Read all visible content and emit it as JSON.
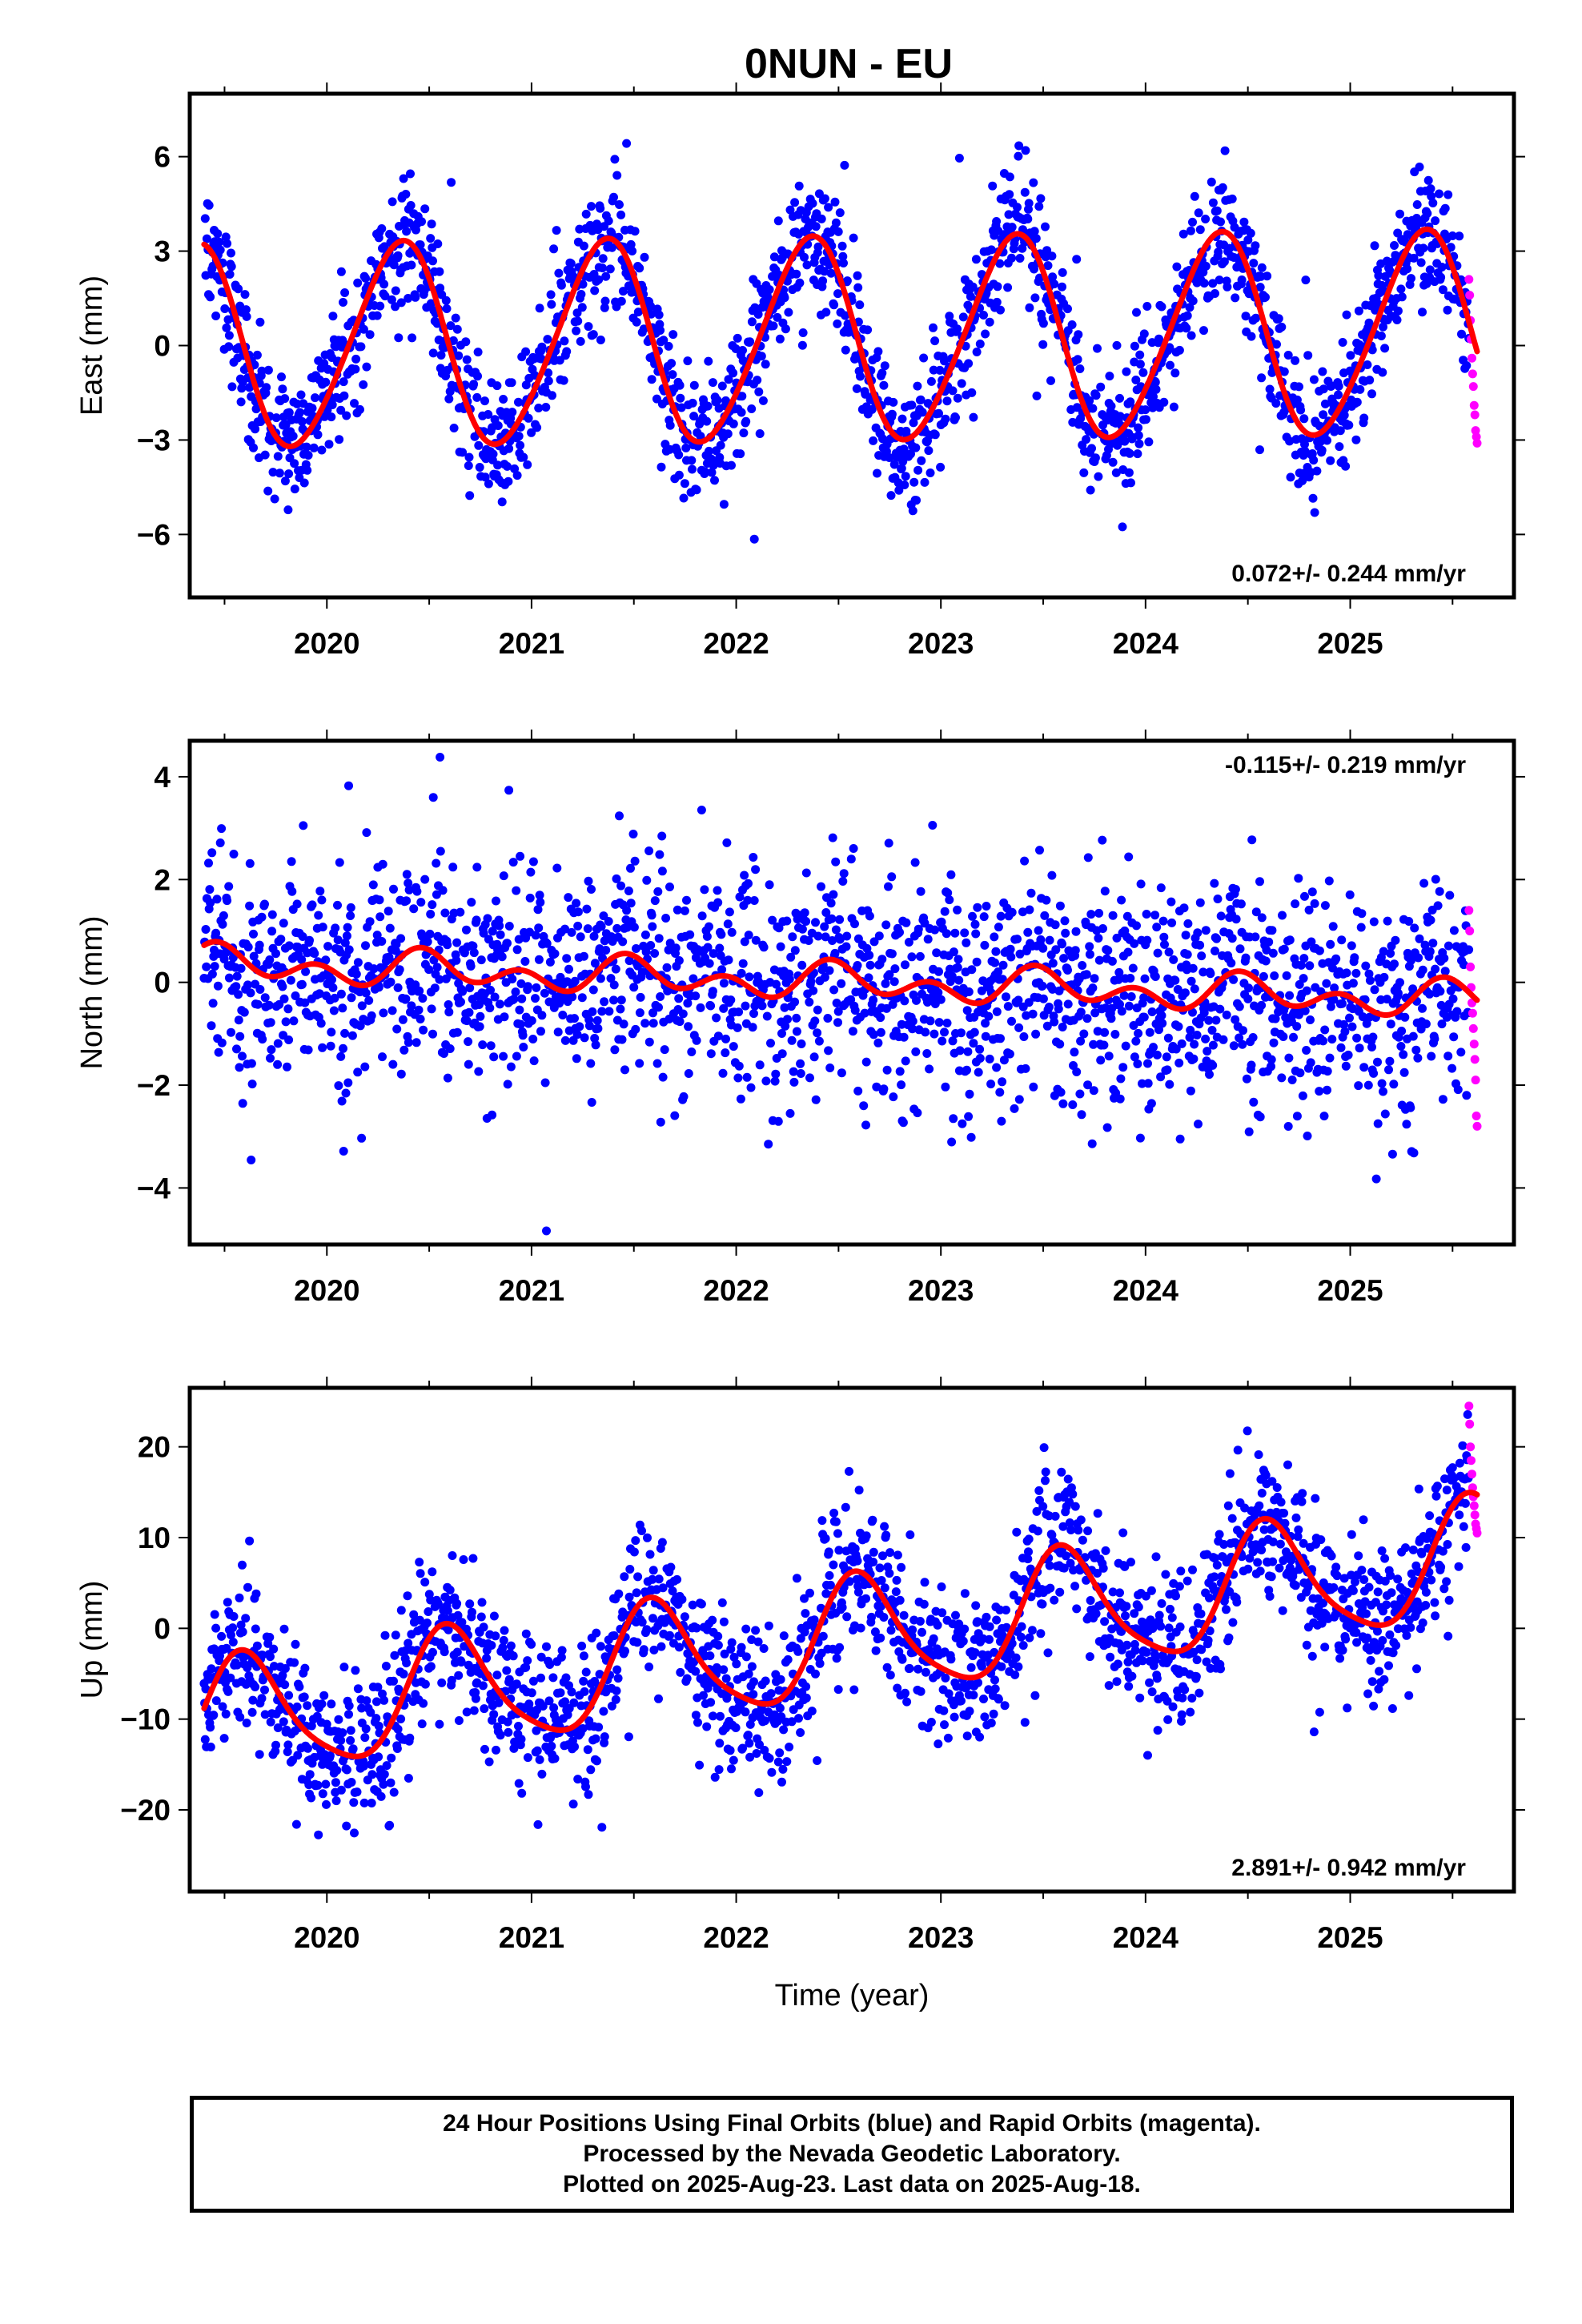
{
  "title": "0NUN - EU",
  "colors": {
    "final_orbits": "#0000ff",
    "rapid_orbits": "#ff00ff",
    "fit": "#ff0000"
  },
  "chart_data": [
    {
      "type": "scatter",
      "component": "east",
      "ylabel": "East (mm)",
      "xlabel": "",
      "xlim": [
        2019.33,
        2025.8
      ],
      "ylim": [
        -8,
        8
      ],
      "xticks": [
        2020,
        2021,
        2022,
        2023,
        2024,
        2025
      ],
      "yticks": [
        -6,
        -3,
        0,
        3,
        6
      ],
      "rate_label": "0.072+/- 0.244 mm/yr",
      "rate_position": "bottom-right",
      "seasonal_fit": {
        "offset": 0.15,
        "trend": 0.072,
        "annual_amp": 3.2,
        "annual_peak": 2019.35,
        "semi_amp": 0.3,
        "semi_peak": 2019.45,
        "t0": 2022.5
      },
      "scatter_model": {
        "noise": 1.05,
        "spike_prob": 0.03,
        "spike_sd": 2.2
      },
      "data_start": 2019.4,
      "data_end": 2025.62,
      "rapid_start": 2025.58,
      "rapid_values": [
        2.1,
        1.6,
        0.8,
        0.2,
        -0.4,
        -0.9,
        -1.3,
        -1.9,
        -2.2,
        -2.7,
        -2.9,
        -3.1
      ]
    },
    {
      "type": "scatter",
      "component": "north",
      "ylabel": "North (mm)",
      "xlabel": "",
      "xlim": [
        2019.33,
        2025.8
      ],
      "ylim": [
        -5.1,
        4.7
      ],
      "xticks": [
        2020,
        2021,
        2022,
        2023,
        2024,
        2025
      ],
      "yticks": [
        -4,
        -2,
        0,
        2,
        4
      ],
      "rate_label": "-0.115+/- 0.219 mm/yr",
      "rate_position": "top-right",
      "seasonal_fit": {
        "offset": 0.0,
        "trend": -0.115,
        "annual_amp": 0.2,
        "annual_peak": 2019.5,
        "semi_amp": 0.25,
        "semi_peak": 2019.45,
        "t0": 2022.5
      },
      "scatter_model": {
        "noise": 1.05,
        "spike_prob": 0.03,
        "spike_sd": 1.8
      },
      "data_start": 2019.4,
      "data_end": 2025.62,
      "rapid_start": 2025.58,
      "rapid_values": [
        1.4,
        1.0,
        0.3,
        -0.1,
        -0.4,
        -0.6,
        -0.9,
        -1.2,
        -1.5,
        -1.9,
        -2.6,
        -2.8
      ]
    },
    {
      "type": "scatter",
      "component": "up",
      "ylabel": "Up (mm)",
      "xlabel": "Time (year)",
      "xlim": [
        2019.33,
        2025.8
      ],
      "ylim": [
        -29,
        26.5
      ],
      "xticks": [
        2020,
        2021,
        2022,
        2023,
        2024,
        2025
      ],
      "yticks": [
        -20,
        -10,
        0,
        10,
        20
      ],
      "rate_label": "2.891+/- 0.942 mm/yr",
      "rate_position": "bottom-right",
      "seasonal_fit": {
        "offset": -1.5,
        "trend": 2.891,
        "annual_amp": 6.5,
        "annual_peak": 2019.6,
        "semi_amp": 1.2,
        "semi_peak": 2019.55,
        "t0": 2022.5
      },
      "scatter_model": {
        "noise": 4.0,
        "spike_prob": 0.03,
        "spike_sd": 7.0
      },
      "data_start": 2019.4,
      "data_end": 2025.62,
      "rapid_start": 2025.58,
      "rapid_values": [
        24.5,
        22.5,
        20.0,
        18.5,
        17.0,
        15.5,
        14.5,
        13.5,
        12.5,
        11.5,
        11.0,
        10.5
      ]
    }
  ],
  "footer": {
    "line1": "24 Hour Positions Using Final Orbits (blue) and Rapid Orbits (magenta).",
    "line2": "Processed by the Nevada Geodetic Laboratory.",
    "line3": "Plotted on 2025-Aug-23. Last data on 2025-Aug-18."
  }
}
